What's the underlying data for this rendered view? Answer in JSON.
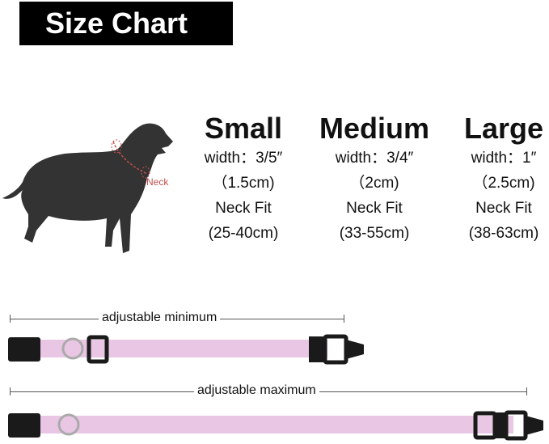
{
  "title": "Size Chart",
  "diagram": {
    "neck_label": "Neck",
    "neck_color": "#c0504d"
  },
  "sizes": [
    {
      "name": "Small",
      "width": "width：3/5″",
      "width_cm": "（1.5cm)",
      "fit_label": "Neck Fit",
      "fit": "(25-40cm)"
    },
    {
      "name": "Medium",
      "width": "width：3/4″",
      "width_cm": "（2cm)",
      "fit_label": "Neck Fit",
      "fit": "(33-55cm)"
    },
    {
      "name": "Large",
      "width": "width：1″",
      "width_cm": "（2.5cm)",
      "fit_label": "Neck Fit",
      "fit": "(38-63cm)"
    }
  ],
  "collars": {
    "min_label": "adjustable minimum",
    "max_label": "adjustable maximum",
    "strap_color": "#e8c6e4",
    "buckle_color": "#1a1a1a"
  }
}
